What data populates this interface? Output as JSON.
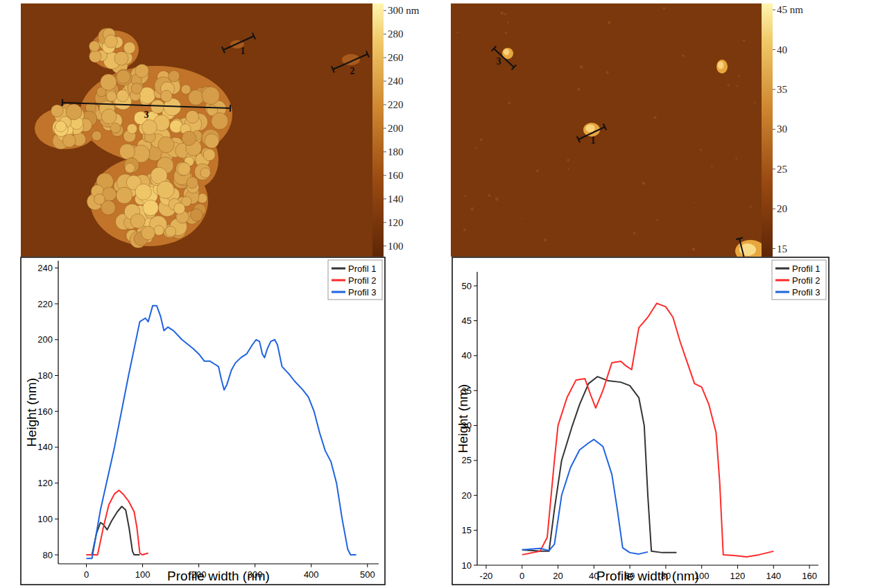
{
  "chart_data": [
    {
      "type": "image",
      "colorbar_range": [
        91,
        306
      ],
      "colorbar_ticks": [
        {
          "value": 300,
          "label": "300 nm"
        },
        280,
        260,
        240,
        220,
        200,
        180,
        160,
        140,
        120,
        100
      ],
      "profile_labels": [
        "1",
        "2",
        "3"
      ]
    },
    {
      "type": "image",
      "colorbar_range": [
        14,
        45.8
      ],
      "colorbar_ticks": [
        {
          "value": 45,
          "label": "45 nm"
        },
        40,
        35,
        30,
        25,
        20,
        15
      ],
      "profile_labels": [
        "3",
        "1"
      ]
    },
    {
      "type": "line",
      "x_label": "Profile width (nm)",
      "y_label": "Height (nm)",
      "xlim": [
        -50,
        520
      ],
      "xticks": [
        0,
        100,
        200,
        300,
        400,
        500
      ],
      "ylim": [
        75,
        244
      ],
      "yticks": [
        80,
        100,
        120,
        140,
        160,
        180,
        200,
        220,
        240
      ],
      "legend": "top-right",
      "series": [
        {
          "name": "Profil 1",
          "color": "#333333",
          "x": [
            0,
            10,
            18,
            25,
            30,
            37,
            45,
            55,
            63,
            70,
            76,
            82,
            85,
            95
          ],
          "values": [
            80,
            80,
            92,
            98,
            97,
            94,
            99,
            104,
            107,
            105,
            95,
            82,
            80,
            80
          ]
        },
        {
          "name": "Profil 2",
          "color": "#ff2a2a",
          "x": [
            0,
            20,
            30,
            40,
            50,
            58,
            65,
            75,
            85,
            90,
            95,
            100,
            110
          ],
          "values": [
            80,
            80,
            95,
            108,
            114,
            116,
            114,
            110,
            104,
            95,
            81,
            80,
            81
          ]
        },
        {
          "name": "Profil 3",
          "color": "#1f63e0",
          "x": [
            0,
            10,
            25,
            50,
            75,
            95,
            105,
            110,
            118,
            125,
            132,
            138,
            145,
            155,
            170,
            190,
            200,
            210,
            220,
            230,
            235,
            240,
            245,
            250,
            258,
            265,
            275,
            285,
            295,
            302,
            308,
            313,
            317,
            322,
            328,
            335,
            340,
            348,
            360,
            370,
            385,
            395,
            405,
            415,
            425,
            435,
            445,
            455,
            465,
            470,
            480
          ],
          "values": [
            78,
            78,
            105,
            140,
            180,
            210,
            212,
            210,
            219,
            219,
            213,
            205,
            207,
            205,
            200,
            195,
            192,
            188,
            188,
            186,
            185,
            178,
            172,
            175,
            183,
            187,
            190,
            192,
            197,
            200,
            199,
            192,
            190,
            195,
            199,
            200,
            197,
            185,
            181,
            177,
            172,
            168,
            160,
            148,
            138,
            132,
            120,
            100,
            83,
            80,
            80
          ]
        }
      ]
    },
    {
      "type": "line",
      "x_label": "Profile width (nm)",
      "y_label": "Height (nm)",
      "xlim": [
        -25,
        165
      ],
      "xticks": [
        -20,
        0,
        20,
        40,
        60,
        80,
        100,
        120,
        140,
        160
      ],
      "ylim": [
        10,
        52
      ],
      "yticks": [
        10,
        15,
        20,
        25,
        30,
        35,
        40,
        45,
        50
      ],
      "legend": "top-right",
      "series": [
        {
          "name": "Profil 1",
          "color": "#333333",
          "x": [
            0,
            10,
            15,
            18,
            22,
            28,
            32,
            37,
            42,
            48,
            55,
            60,
            65,
            68,
            70,
            72,
            78,
            86
          ],
          "values": [
            12.2,
            12,
            12,
            18,
            25,
            30,
            33,
            36,
            37,
            36.4,
            36.2,
            35.7,
            34,
            30,
            20,
            12,
            11.8,
            11.8
          ]
        },
        {
          "name": "Profil 2",
          "color": "#ff2a2a",
          "x": [
            0,
            10,
            14,
            18,
            20,
            25,
            30,
            35,
            38,
            41,
            45,
            50,
            55,
            58,
            61,
            65,
            70,
            75,
            80,
            84,
            88,
            92,
            96,
            100,
            104,
            108,
            110,
            112,
            118,
            125,
            132,
            140
          ],
          "values": [
            11.5,
            12,
            14,
            25,
            30,
            34,
            36.5,
            36.7,
            34.5,
            32.5,
            35,
            39,
            39.2,
            38.5,
            38,
            44,
            45.5,
            47.5,
            47,
            45.5,
            42,
            39,
            36,
            35.5,
            33,
            29,
            22,
            11.5,
            11.4,
            11.2,
            11.5,
            12
          ]
        },
        {
          "name": "Profil 3",
          "color": "#1f63e0",
          "x": [
            0,
            10,
            15,
            18,
            22,
            27,
            32,
            37,
            40,
            45,
            50,
            53,
            56,
            60,
            65,
            70
          ],
          "values": [
            12.2,
            12.4,
            12.1,
            13,
            20,
            24,
            26.5,
            27.5,
            28,
            27,
            23,
            18,
            12.5,
            11.8,
            11.6,
            11.9
          ]
        }
      ]
    }
  ]
}
